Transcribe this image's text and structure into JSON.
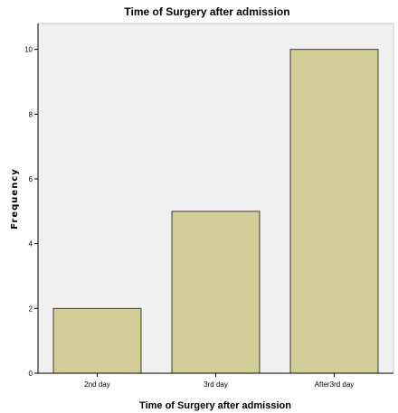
{
  "chart_data": {
    "type": "bar",
    "title": "Time of Surgery after admission",
    "xlabel": "Time of Surgery after admission",
    "ylabel": "Frequency",
    "categories": [
      "2nd day",
      "3rd day",
      "After3rd day"
    ],
    "values": [
      2,
      5,
      10
    ],
    "ylim": [
      0,
      10.8
    ],
    "yticks": [
      0,
      2,
      4,
      6,
      8,
      10
    ],
    "grid": false,
    "legend": "none",
    "colors": {
      "bar_fill": "#d3ce98",
      "bar_stroke": "#3c3c28",
      "plot_background": "#f0f0f0"
    }
  }
}
